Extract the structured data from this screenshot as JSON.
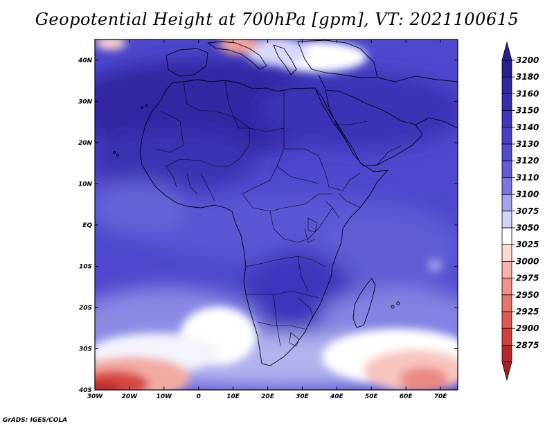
{
  "title": "Geopotential Height at 700hPa [gpm], VT: 2021100615",
  "credit": "GrADS: IGES/COLA",
  "map": {
    "lon_range": [
      -30,
      75
    ],
    "lat_range": [
      -40,
      45
    ],
    "lon_ticks": [
      {
        "value": -30,
        "label": "30W"
      },
      {
        "value": -20,
        "label": "20W"
      },
      {
        "value": -10,
        "label": "10W"
      },
      {
        "value": 0,
        "label": "0"
      },
      {
        "value": 10,
        "label": "10E"
      },
      {
        "value": 20,
        "label": "20E"
      },
      {
        "value": 30,
        "label": "30E"
      },
      {
        "value": 40,
        "label": "40E"
      },
      {
        "value": 50,
        "label": "50E"
      },
      {
        "value": 60,
        "label": "60E"
      },
      {
        "value": 70,
        "label": "70E"
      }
    ],
    "lat_ticks": [
      {
        "value": 40,
        "label": "40N"
      },
      {
        "value": 30,
        "label": "30N"
      },
      {
        "value": 20,
        "label": "20N"
      },
      {
        "value": 10,
        "label": "10N"
      },
      {
        "value": 0,
        "label": "EQ"
      },
      {
        "value": -10,
        "label": "10S"
      },
      {
        "value": -20,
        "label": "20S"
      },
      {
        "value": -30,
        "label": "30S"
      },
      {
        "value": -40,
        "label": "40S"
      }
    ]
  },
  "colorbar": {
    "levels": [
      {
        "label": "3200",
        "color": "#2a1f8e"
      },
      {
        "label": "3180",
        "color": "#3126a0"
      },
      {
        "label": "3160",
        "color": "#372eae"
      },
      {
        "label": "3150",
        "color": "#3e36bb"
      },
      {
        "label": "3140",
        "color": "#4740c6"
      },
      {
        "label": "3130",
        "color": "#524dcf"
      },
      {
        "label": "3120",
        "color": "#605dd7"
      },
      {
        "label": "3110",
        "color": "#7a78e0"
      },
      {
        "label": "3100",
        "color": "#a4a3ec"
      },
      {
        "label": "3075",
        "color": "#d3d3f7"
      },
      {
        "label": "3050",
        "color": "#ffffff"
      },
      {
        "label": "3025",
        "color": "#fcd7d3"
      },
      {
        "label": "3000",
        "color": "#f6b1aa"
      },
      {
        "label": "2975",
        "color": "#ef928b"
      },
      {
        "label": "2950",
        "color": "#e8766f"
      },
      {
        "label": "2925",
        "color": "#df5955"
      },
      {
        "label": "2900",
        "color": "#d13f3e"
      },
      {
        "label": "2875",
        "color": "#b8292b"
      }
    ],
    "top_arrow_color": "#2a1f8e",
    "bottom_arrow_color": "#a81f22"
  }
}
